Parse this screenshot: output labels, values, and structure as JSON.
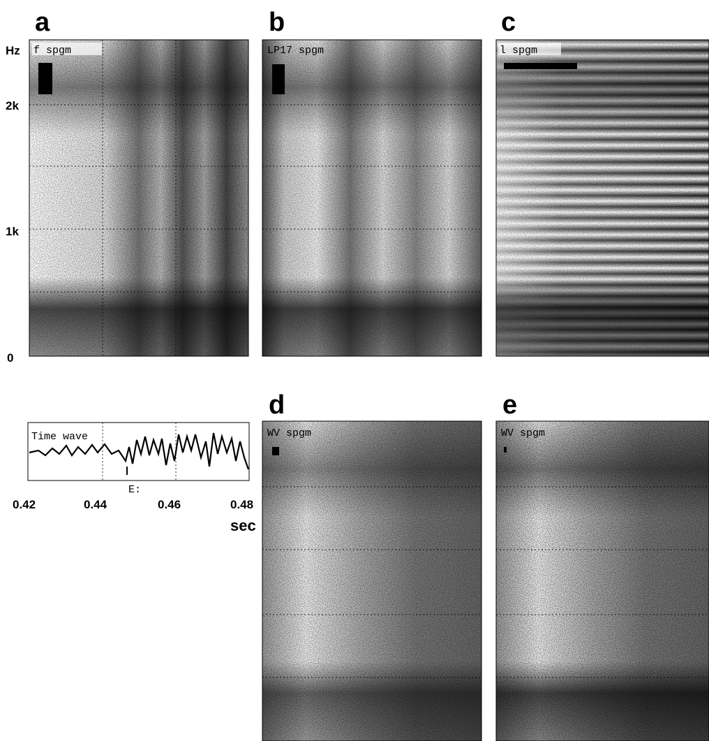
{
  "panels": [
    {
      "letter": "a",
      "title": "f spgm"
    },
    {
      "letter": "b",
      "title": "LP17 spgm"
    },
    {
      "letter": "c",
      "title": "l spgm"
    },
    {
      "letter": "d",
      "title": "WV spgm"
    },
    {
      "letter": "e",
      "title": "WV spgm"
    }
  ],
  "frequency_axis": {
    "unit": "Hz",
    "labels": [
      "2k",
      "1k",
      "0"
    ]
  },
  "time_wave": {
    "title": "Time wave",
    "marker": "E:",
    "labels": [
      "0.42",
      "0.44",
      "0.46",
      "0.48"
    ],
    "unit": "sec"
  }
}
